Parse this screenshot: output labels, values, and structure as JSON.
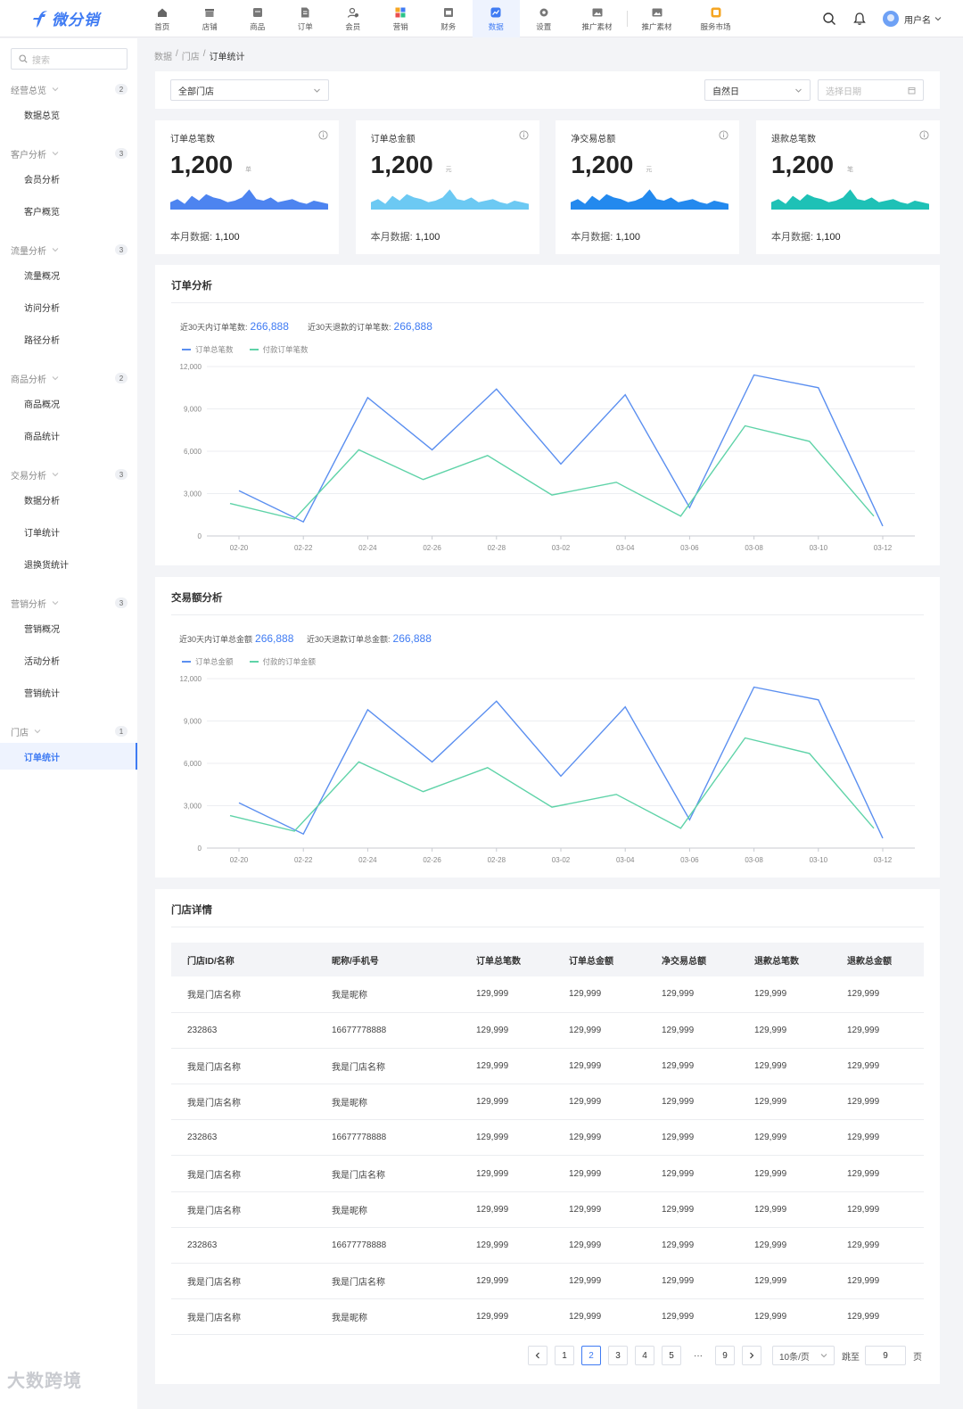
{
  "brand": {
    "name": "微分销",
    "color": "#3f7bf3"
  },
  "nav": [
    {
      "label": "首页",
      "icon": "home-icon"
    },
    {
      "label": "店铺",
      "icon": "shop-icon"
    },
    {
      "label": "商品",
      "icon": "goods-icon"
    },
    {
      "label": "订单",
      "icon": "order-icon"
    },
    {
      "label": "会员",
      "icon": "member-icon"
    },
    {
      "label": "营销",
      "icon": "marketing-icon"
    },
    {
      "label": "财务",
      "icon": "finance-icon"
    },
    {
      "label": "数据",
      "icon": "data-icon",
      "active": true
    },
    {
      "label": "设置",
      "icon": "settings-icon"
    },
    {
      "label": "推广素材",
      "icon": "image-icon"
    },
    {
      "label": "推广素材",
      "icon": "image-icon"
    },
    {
      "label": "服务市场",
      "icon": "market-icon"
    }
  ],
  "user": {
    "name": "用户名"
  },
  "sidebar": {
    "search_placeholder": "搜索",
    "groups": [
      {
        "label": "经营总览",
        "count": "2",
        "items": [
          "数据总览"
        ]
      },
      {
        "label": "客户分析",
        "count": "3",
        "items": [
          "会员分析",
          "客户概览"
        ]
      },
      {
        "label": "流量分析",
        "count": "3",
        "items": [
          "流量概况",
          "访问分析",
          "路径分析"
        ]
      },
      {
        "label": "商品分析",
        "count": "2",
        "items": [
          "商品概况",
          "商品统计"
        ]
      },
      {
        "label": "交易分析",
        "count": "3",
        "items": [
          "数据分析",
          "订单统计",
          "退换货统计"
        ]
      },
      {
        "label": "营销分析",
        "count": "3",
        "items": [
          "营销概况",
          "活动分析",
          "营销统计"
        ]
      },
      {
        "label": "门店",
        "count": "1",
        "items": [
          "订单统计"
        ]
      }
    ],
    "active_item": "订单统计"
  },
  "breadcrumb": [
    "数据",
    "门店",
    "订单统计"
  ],
  "filters": {
    "store": "全部门店",
    "period": "自然日",
    "date_placeholder": "选择日期"
  },
  "stats": [
    {
      "title": "订单总笔数",
      "value": "1,200",
      "unit": "单",
      "footer_label": "本月数据:",
      "footer_value": "1,100",
      "color": "#4d84f0"
    },
    {
      "title": "订单总金额",
      "value": "1,200",
      "unit": "元",
      "footer_label": "本月数据:",
      "footer_value": "1,100",
      "color": "#6cc9f3"
    },
    {
      "title": "净交易总额",
      "value": "1,200",
      "unit": "元",
      "footer_label": "本月数据:",
      "footer_value": "1,100",
      "color": "#2389ee"
    },
    {
      "title": "退款总笔数",
      "value": "1,200",
      "unit": "笔",
      "footer_label": "本月数据:",
      "footer_value": "1,100",
      "color": "#1ec1b6"
    }
  ],
  "order_panel": {
    "title": "订单分析",
    "kpi1_label": "近30天内订单笔数:",
    "kpi1_value": "266,888",
    "kpi2_label": "近30天退款的订单笔数:",
    "kpi2_value": "266,888"
  },
  "amount_panel": {
    "title": "交易额分析",
    "kpi1_label": "近30天内订单总金额",
    "kpi1_value": "266,888",
    "kpi2_label": "近30天退款订单总金额:",
    "kpi2_value": "266,888"
  },
  "chart_data": [
    {
      "type": "line",
      "x": [
        "02-20",
        "02-22",
        "02-24",
        "02-26",
        "02-28",
        "03-02",
        "03-04",
        "03-06",
        "03-08",
        "03-10",
        "03-12"
      ],
      "ylim": [
        0,
        12000
      ],
      "yticks": [
        "0",
        "3,000",
        "6,000",
        "9,000",
        "12,000"
      ],
      "series": [
        {
          "name": "订单总笔数",
          "color": "#5b8ff0",
          "values": [
            3200,
            1000,
            9800,
            6100,
            10400,
            5100,
            10000,
            2000,
            11400,
            10500,
            700
          ]
        },
        {
          "name": "付款订单笔数",
          "color": "#5fd3a8",
          "values": [
            2300,
            1200,
            6100,
            4000,
            5700,
            2900,
            3800,
            1400,
            7800,
            6700,
            1400
          ]
        }
      ]
    },
    {
      "type": "line",
      "x": [
        "02-20",
        "02-22",
        "02-24",
        "02-26",
        "02-28",
        "03-02",
        "03-04",
        "03-06",
        "03-08",
        "03-10",
        "03-12"
      ],
      "ylim": [
        0,
        12000
      ],
      "yticks": [
        "0",
        "3,000",
        "6,000",
        "9,000",
        "12,000"
      ],
      "series": [
        {
          "name": "订单总金额",
          "color": "#5b8ff0",
          "values": [
            3200,
            1000,
            9800,
            6100,
            10400,
            5100,
            10000,
            2000,
            11400,
            10500,
            700
          ]
        },
        {
          "name": "付款的订单金额",
          "color": "#5fd3a8",
          "values": [
            2300,
            1200,
            6100,
            4000,
            5700,
            2900,
            3800,
            1400,
            7800,
            6700,
            1400
          ]
        }
      ]
    }
  ],
  "store_table": {
    "title": "门店详情",
    "columns": [
      "门店ID/名称",
      "昵称/手机号",
      "订单总笔数",
      "订单总金额",
      "净交易总额",
      "退款总笔数",
      "退款总金额"
    ],
    "rows": [
      [
        "我是门店名称",
        "我是昵称",
        "129,999",
        "129,999",
        "129,999",
        "129,999",
        "129,999"
      ],
      [
        "232863",
        "16677778888",
        "129,999",
        "129,999",
        "129,999",
        "129,999",
        "129,999"
      ],
      [
        "我是门店名称",
        "我是门店名称",
        "129,999",
        "129,999",
        "129,999",
        "129,999",
        "129,999"
      ],
      [
        "我是门店名称",
        "我是昵称",
        "129,999",
        "129,999",
        "129,999",
        "129,999",
        "129,999"
      ],
      [
        "232863",
        "16677778888",
        "129,999",
        "129,999",
        "129,999",
        "129,999",
        "129,999"
      ],
      [
        "我是门店名称",
        "我是门店名称",
        "129,999",
        "129,999",
        "129,999",
        "129,999",
        "129,999"
      ],
      [
        "我是门店名称",
        "我是昵称",
        "129,999",
        "129,999",
        "129,999",
        "129,999",
        "129,999"
      ],
      [
        "232863",
        "16677778888",
        "129,999",
        "129,999",
        "129,999",
        "129,999",
        "129,999"
      ],
      [
        "我是门店名称",
        "我是门店名称",
        "129,999",
        "129,999",
        "129,999",
        "129,999",
        "129,999"
      ],
      [
        "我是门店名称",
        "我是昵称",
        "129,999",
        "129,999",
        "129,999",
        "129,999",
        "129,999"
      ]
    ]
  },
  "pagination": {
    "pages": [
      "1",
      "2",
      "3",
      "4",
      "5"
    ],
    "ellipsis": "···",
    "last_page": "9",
    "current": "2",
    "page_size": "10条/页",
    "jump_label": "跳至",
    "jump_value": "9",
    "page_suffix": "页"
  },
  "watermark": "大数跨境"
}
